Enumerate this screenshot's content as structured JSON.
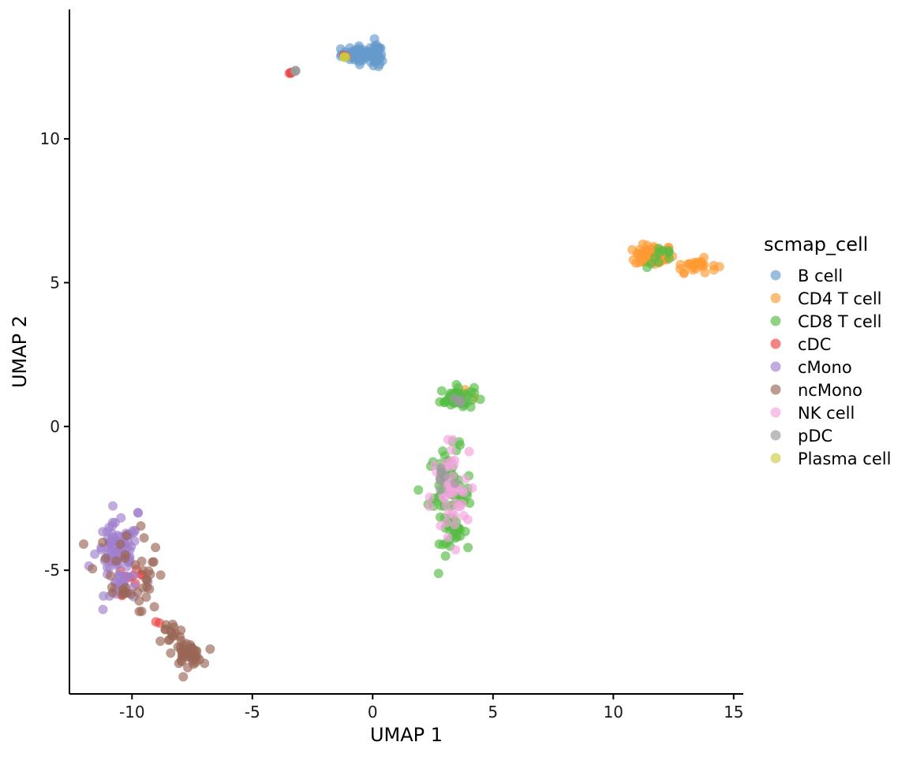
{
  "chart_data": {
    "type": "scatter",
    "title": "",
    "xlabel": "UMAP 1",
    "ylabel": "UMAP 2",
    "xlim": [
      -12.6,
      15.4
    ],
    "ylim": [
      -9.3,
      14.5
    ],
    "x_ticks": [
      -10,
      -5,
      0,
      5,
      10,
      15
    ],
    "y_ticks": [
      -5,
      0,
      5,
      10
    ],
    "grid": false,
    "legend_position": "right",
    "legend_title": "scmap_cell",
    "point_alpha": 0.65,
    "series": [
      {
        "name": "B cell",
        "color": "#6699CC",
        "clusters": [
          {
            "cx": -0.4,
            "cy": 12.95,
            "sx": 0.45,
            "sy": 0.14,
            "n": 60
          },
          {
            "cx": 0.15,
            "cy": 12.85,
            "sx": 0.12,
            "sy": 0.25,
            "n": 20
          }
        ]
      },
      {
        "name": "CD4 T cell",
        "color": "#FF9933",
        "clusters": [
          {
            "cx": 11.7,
            "cy": 5.95,
            "sx": 0.4,
            "sy": 0.18,
            "n": 90
          },
          {
            "cx": 13.4,
            "cy": 5.6,
            "sx": 0.45,
            "sy": 0.12,
            "n": 25
          },
          {
            "cx": 3.8,
            "cy": 1.2,
            "sx": 0.15,
            "sy": 0.1,
            "n": 3
          }
        ]
      },
      {
        "name": "CD8 T cell",
        "color": "#55BB44",
        "clusters": [
          {
            "cx": 3.5,
            "cy": 1.0,
            "sx": 0.35,
            "sy": 0.2,
            "n": 45
          },
          {
            "cx": 3.2,
            "cy": -2.4,
            "sx": 0.45,
            "sy": 0.8,
            "n": 70
          },
          {
            "cx": 3.4,
            "cy": -3.7,
            "sx": 0.25,
            "sy": 0.2,
            "n": 15
          },
          {
            "cx": 12.0,
            "cy": 5.9,
            "sx": 0.3,
            "sy": 0.2,
            "n": 10
          }
        ]
      },
      {
        "name": "cDC",
        "color": "#EE4444",
        "clusters": [
          {
            "cx": -3.4,
            "cy": 12.3,
            "sx": 0.04,
            "sy": 0.03,
            "n": 4
          },
          {
            "cx": -10.2,
            "cy": -5.2,
            "sx": 0.5,
            "sy": 0.6,
            "n": 12
          },
          {
            "cx": -9.0,
            "cy": -6.8,
            "sx": 0.15,
            "sy": 0.05,
            "n": 2
          },
          {
            "cx": -1.1,
            "cy": 12.9,
            "sx": 0.05,
            "sy": 0.03,
            "n": 2
          }
        ]
      },
      {
        "name": "cMono",
        "color": "#A07FCC",
        "clusters": [
          {
            "cx": -10.6,
            "cy": -4.4,
            "sx": 0.45,
            "sy": 0.5,
            "n": 80
          },
          {
            "cx": -10.3,
            "cy": -5.6,
            "sx": 0.4,
            "sy": 0.3,
            "n": 20
          },
          {
            "cx": -9.7,
            "cy": -3.0,
            "sx": 0.05,
            "sy": 0.03,
            "n": 2
          },
          {
            "cx": -7.4,
            "cy": -8.0,
            "sx": 0.05,
            "sy": 0.05,
            "n": 3
          }
        ]
      },
      {
        "name": "ncMono",
        "color": "#9A6655",
        "clusters": [
          {
            "cx": -10.3,
            "cy": -4.8,
            "sx": 0.6,
            "sy": 0.7,
            "n": 25
          },
          {
            "cx": -9.2,
            "cy": -5.4,
            "sx": 0.3,
            "sy": 0.5,
            "n": 15
          },
          {
            "cx": -8.4,
            "cy": -7.2,
            "sx": 0.3,
            "sy": 0.2,
            "n": 15
          },
          {
            "cx": -7.7,
            "cy": -7.9,
            "sx": 0.3,
            "sy": 0.2,
            "n": 40
          }
        ]
      },
      {
        "name": "NK cell",
        "color": "#F3A3DD",
        "clusters": [
          {
            "cx": 3.2,
            "cy": -2.5,
            "sx": 0.4,
            "sy": 0.8,
            "n": 45
          },
          {
            "cx": 3.3,
            "cy": -0.8,
            "sx": 0.1,
            "sy": 0.3,
            "n": 4
          }
        ]
      },
      {
        "name": "pDC",
        "color": "#999999",
        "clusters": [
          {
            "cx": -3.2,
            "cy": 12.35,
            "sx": 0.04,
            "sy": 0.03,
            "n": 3
          },
          {
            "cx": 2.9,
            "cy": -1.8,
            "sx": 0.3,
            "sy": 0.4,
            "n": 8
          },
          {
            "cx": 3.6,
            "cy": 0.9,
            "sx": 0.2,
            "sy": 0.1,
            "n": 4
          }
        ]
      },
      {
        "name": "Plasma cell",
        "color": "#CCCC44",
        "clusters": [
          {
            "cx": -1.2,
            "cy": 12.85,
            "sx": 0.05,
            "sy": 0.03,
            "n": 3
          }
        ]
      }
    ]
  }
}
